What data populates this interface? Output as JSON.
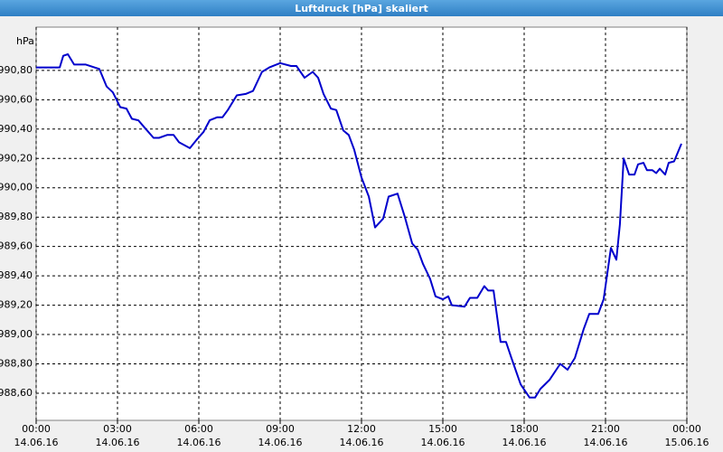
{
  "chart_data": {
    "type": "line",
    "title": "Luftdruck [hPa] skaliert",
    "ylabel": "hPa",
    "xlim": [
      0,
      24
    ],
    "ylim": [
      988.415,
      991.095
    ],
    "grid": true,
    "xticks": [
      {
        "value": 0,
        "label": "00:00",
        "date": "14.06.16"
      },
      {
        "value": 3,
        "label": "03:00",
        "date": "14.06.16"
      },
      {
        "value": 6,
        "label": "06:00",
        "date": "14.06.16"
      },
      {
        "value": 9,
        "label": "09:00",
        "date": "14.06.16"
      },
      {
        "value": 12,
        "label": "12:00",
        "date": "14.06.16"
      },
      {
        "value": 15,
        "label": "15:00",
        "date": "14.06.16"
      },
      {
        "value": 18,
        "label": "18:00",
        "date": "14.06.16"
      },
      {
        "value": 21,
        "label": "21:00",
        "date": "14.06.16"
      },
      {
        "value": 24,
        "label": "00:00",
        "date": "15.06.16"
      }
    ],
    "yticks": [
      {
        "value": 988.6,
        "label": "988,60"
      },
      {
        "value": 988.8,
        "label": "988,80"
      },
      {
        "value": 989.0,
        "label": "989,00"
      },
      {
        "value": 989.2,
        "label": "989,20"
      },
      {
        "value": 989.4,
        "label": "989,40"
      },
      {
        "value": 989.6,
        "label": "989,60"
      },
      {
        "value": 989.8,
        "label": "989,80"
      },
      {
        "value": 990.0,
        "label": "990,00"
      },
      {
        "value": 990.2,
        "label": "990,20"
      },
      {
        "value": 990.4,
        "label": "990,40"
      },
      {
        "value": 990.6,
        "label": "990,60"
      },
      {
        "value": 990.8,
        "label": "990,80"
      }
    ],
    "series": [
      {
        "color": "#0000cc",
        "x": [
          0,
          0.87,
          1.0,
          1.17,
          1.4,
          1.83,
          2.33,
          2.6,
          2.83,
          3.1,
          3.33,
          3.53,
          3.77,
          4.0,
          4.33,
          4.53,
          4.83,
          5.07,
          5.27,
          5.67,
          5.93,
          6.17,
          6.4,
          6.67,
          6.87,
          7.07,
          7.4,
          7.73,
          8.0,
          8.33,
          8.6,
          9.0,
          9.4,
          9.6,
          9.9,
          10.2,
          10.4,
          10.6,
          10.87,
          11.07,
          11.33,
          11.53,
          11.73,
          12.0,
          12.27,
          12.5,
          12.8,
          13.0,
          13.33,
          13.6,
          13.87,
          14.07,
          14.27,
          14.53,
          14.73,
          15.0,
          15.2,
          15.33,
          15.8,
          16.0,
          16.27,
          16.53,
          16.67,
          16.87,
          17.13,
          17.33,
          17.53,
          17.87,
          18.2,
          18.4,
          18.6,
          18.93,
          19.33,
          19.6,
          19.87,
          20.2,
          20.4,
          20.73,
          20.93,
          21.2,
          21.4,
          21.53,
          21.67,
          21.87,
          22.07,
          22.2,
          22.4,
          22.53,
          22.73,
          22.87,
          23.0,
          23.2,
          23.33,
          23.53,
          23.8
        ],
        "values": [
          990.82,
          990.82,
          990.9,
          990.91,
          990.84,
          990.84,
          990.81,
          990.69,
          990.65,
          990.55,
          990.54,
          990.47,
          990.46,
          990.41,
          990.34,
          990.34,
          990.36,
          990.36,
          990.31,
          990.27,
          990.33,
          990.38,
          990.46,
          990.48,
          990.48,
          990.53,
          990.63,
          990.64,
          990.66,
          990.79,
          990.82,
          990.85,
          990.83,
          990.83,
          990.75,
          990.79,
          990.75,
          990.64,
          990.54,
          990.53,
          990.39,
          990.36,
          990.26,
          990.07,
          989.94,
          989.73,
          989.79,
          989.94,
          989.96,
          989.8,
          989.62,
          989.58,
          989.48,
          989.38,
          989.26,
          989.24,
          989.26,
          989.2,
          989.19,
          989.25,
          989.25,
          989.33,
          989.3,
          989.3,
          988.95,
          988.95,
          988.84,
          988.66,
          988.57,
          988.57,
          988.63,
          988.69,
          988.8,
          988.76,
          988.84,
          989.04,
          989.14,
          989.14,
          989.24,
          989.59,
          989.51,
          989.75,
          990.2,
          990.09,
          990.09,
          990.16,
          990.17,
          990.12,
          990.12,
          990.1,
          990.13,
          990.09,
          990.17,
          990.18,
          990.3
        ]
      }
    ]
  }
}
